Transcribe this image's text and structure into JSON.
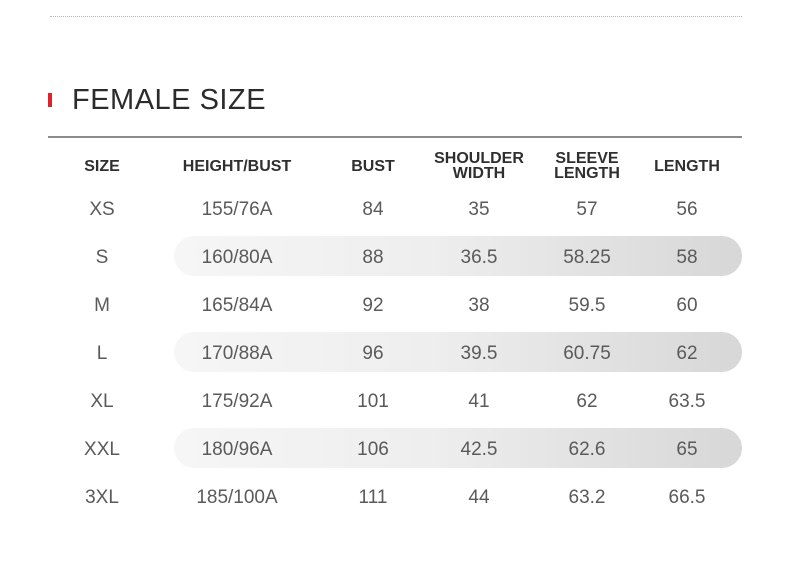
{
  "section": {
    "title": "FEMALE SIZE",
    "accent_color": "#e0202a"
  },
  "table": {
    "headers": [
      "SIZE",
      "HEIGHT/BUST",
      "BUST",
      "SHOULDER\nWIDTH",
      "SLEEVE\nLENGTH",
      "LENGTH"
    ],
    "rows": [
      [
        "XS",
        "155/76A",
        "84",
        "35",
        "57",
        "56"
      ],
      [
        "S",
        "160/80A",
        "88",
        "36.5",
        "58.25",
        "58"
      ],
      [
        "M",
        "165/84A",
        "92",
        "38",
        "59.5",
        "60"
      ],
      [
        "L",
        "170/88A",
        "96",
        "39.5",
        "60.75",
        "62"
      ],
      [
        "XL",
        "175/92A",
        "101",
        "41",
        "62",
        "63.5"
      ],
      [
        "XXL",
        "180/96A",
        "106",
        "42.5",
        "62.6",
        "65"
      ],
      [
        "3XL",
        "185/100A",
        "111",
        "44",
        "63.2",
        "66.5"
      ]
    ]
  }
}
